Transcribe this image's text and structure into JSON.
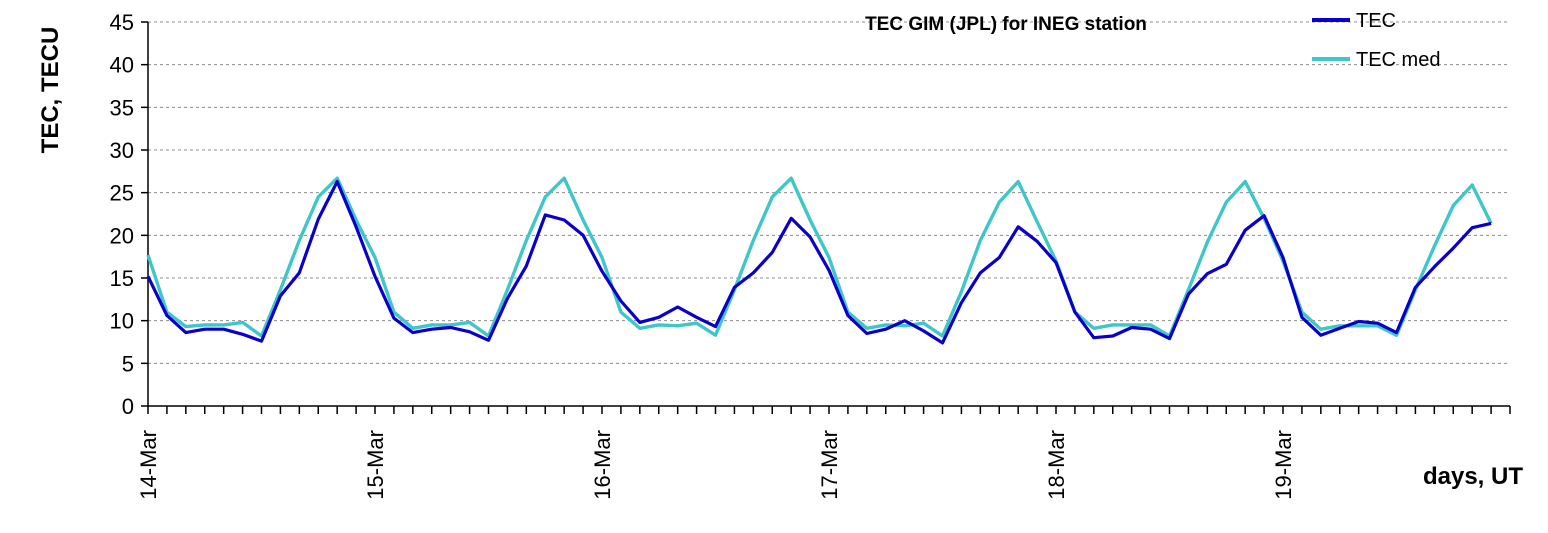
{
  "chart_data": {
    "type": "line",
    "title": "TEC GIM (JPL) for INEG station",
    "xlabel": "days, UT",
    "ylabel": "TEC, TECU",
    "ylim": [
      0,
      45
    ],
    "yticks": [
      0,
      5,
      10,
      15,
      20,
      25,
      30,
      35,
      40,
      45
    ],
    "grid": "horizontal dashed",
    "legend_position": "top-right",
    "x_tick_labels": [
      "14-Mar",
      "15-Mar",
      "16-Mar",
      "17-Mar",
      "18-Mar",
      "19-Mar"
    ],
    "x_start": "14-Mar 00:00",
    "x_end": "20-Mar 00:00",
    "sample_interval": "2 h",
    "series": [
      {
        "name": "TEC",
        "color": "#0a00c8",
        "values": [
          15.2,
          10.6,
          8.6,
          9.0,
          9.0,
          8.4,
          7.6,
          12.9,
          15.6,
          21.9,
          26.3,
          21.0,
          15.2,
          10.3,
          8.6,
          9.0,
          9.2,
          8.7,
          7.7,
          12.6,
          16.4,
          22.4,
          21.8,
          20.0,
          15.8,
          12.3,
          9.8,
          10.4,
          11.6,
          10.4,
          9.3,
          13.9,
          15.6,
          18.0,
          22.0,
          19.8,
          15.9,
          10.6,
          8.5,
          9.0,
          10.0,
          8.8,
          7.4,
          12.1,
          15.6,
          17.4,
          21.0,
          19.3,
          16.8,
          11.0,
          8.0,
          8.2,
          9.2,
          9.0,
          7.9,
          13.1,
          15.5,
          16.6,
          20.6,
          22.3,
          17.4,
          10.4,
          8.3,
          9.1,
          9.9,
          9.7,
          8.6,
          13.9,
          16.3,
          18.5,
          20.9,
          21.4
        ]
      },
      {
        "name": "TEC med",
        "color": "#3ec6c8",
        "values": [
          17.7,
          11.0,
          9.3,
          9.5,
          9.5,
          9.8,
          8.2,
          13.6,
          19.4,
          24.5,
          26.7,
          21.8,
          17.4,
          11.0,
          9.1,
          9.5,
          9.5,
          9.8,
          8.2,
          13.6,
          19.4,
          24.5,
          26.7,
          21.8,
          17.4,
          11.0,
          9.1,
          9.5,
          9.4,
          9.7,
          8.3,
          13.6,
          19.4,
          24.5,
          26.7,
          21.8,
          17.4,
          11.0,
          9.1,
          9.5,
          9.4,
          9.7,
          8.2,
          13.4,
          19.4,
          23.9,
          26.3,
          21.6,
          17.0,
          11.0,
          9.1,
          9.5,
          9.5,
          9.5,
          8.2,
          13.6,
          19.2,
          23.9,
          26.3,
          22.0,
          17.0,
          11.0,
          9.0,
          9.4,
          9.4,
          9.4,
          8.3,
          13.6,
          18.7,
          23.5,
          25.9,
          21.4
        ]
      }
    ]
  }
}
